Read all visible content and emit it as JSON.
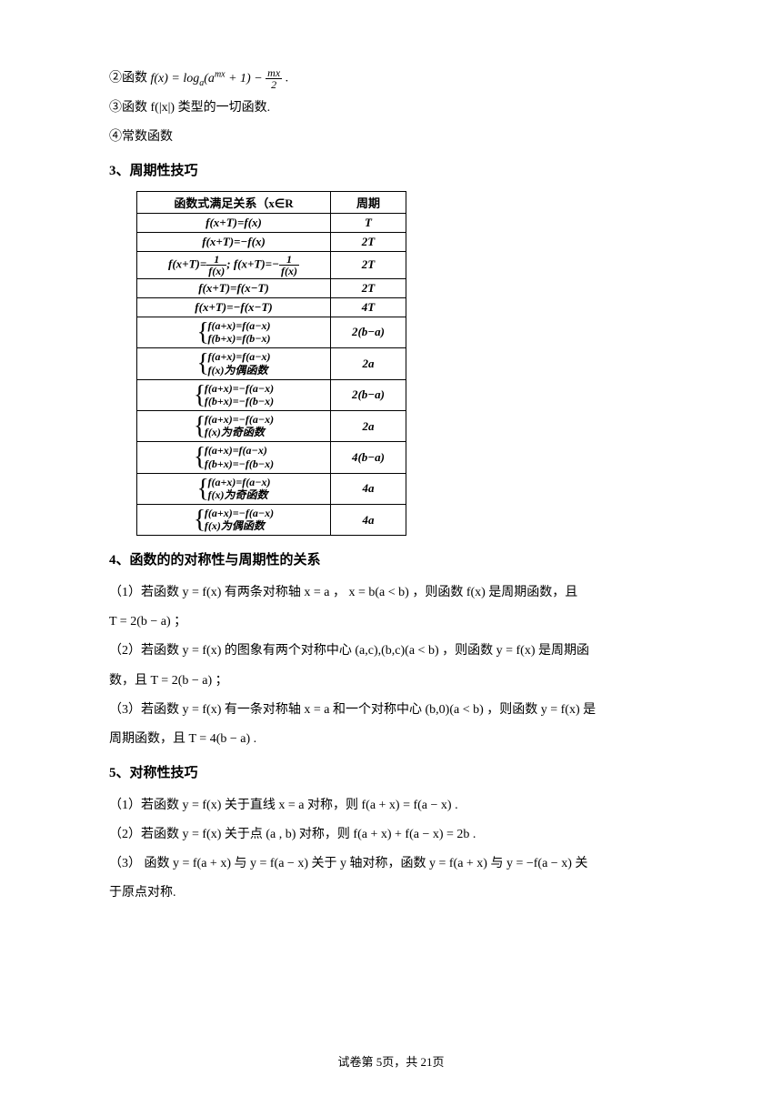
{
  "items": {
    "item2_prefix": "②函数 ",
    "item2_tail": " .",
    "item3": "③函数 f(|x|) 类型的一切函数.",
    "item4": "④常数函数"
  },
  "headings": {
    "h3": "3、周期性技巧",
    "h4": "4、函数的的对称性与周期性的关系",
    "h5": "5、对称性技巧"
  },
  "table": {
    "header_left": "函数式满足关系（x∈R",
    "header_right": "周期",
    "rows": [
      {
        "lhs": "f(x+T)=f(x)",
        "rhs": "T"
      },
      {
        "lhs": "f(x+T)=−f(x)",
        "rhs": "2T"
      },
      {
        "lhs_frac": true,
        "rhs": "2T"
      },
      {
        "lhs": "f(x+T)=f(x−T)",
        "rhs": "2T"
      },
      {
        "lhs": "f(x+T)=−f(x−T)",
        "rhs": "4T"
      },
      {
        "brace": [
          "f(a+x)=f(a−x)",
          "f(b+x)=f(b−x)"
        ],
        "rhs": "2(b−a)"
      },
      {
        "brace": [
          "f(a+x)=f(a−x)",
          "f(x)为偶函数"
        ],
        "rhs": "2a"
      },
      {
        "brace": [
          "f(a+x)=−f(a−x)",
          "f(b+x)=−f(b−x)"
        ],
        "rhs": "2(b−a)"
      },
      {
        "brace": [
          "f(a+x)=−f(a−x)",
          "f(x)为奇函数"
        ],
        "rhs": "2a"
      },
      {
        "brace": [
          "f(a+x)=f(a−x)",
          "f(b+x)=−f(b−x)"
        ],
        "rhs": "4(b−a)"
      },
      {
        "brace": [
          "f(a+x)=f(a−x)",
          "f(x)为奇函数"
        ],
        "rhs": "4a"
      },
      {
        "brace": [
          "f(a+x)=−f(a−x)",
          "f(x)为偶函数"
        ],
        "rhs": "4a"
      }
    ]
  },
  "section4": {
    "p1a": "（1）若函数 y = f(x) 有两条对称轴 x = a ， x = b(a < b) ，则函数 f(x) 是周期函数，且",
    "p1b": "T = 2(b − a) ；",
    "p2a": "（2）若函数 y = f(x) 的图象有两个对称中心 (a,c),(b,c)(a < b) ，则函数 y = f(x) 是周期函",
    "p2b": "数，且 T = 2(b − a) ；",
    "p3a": "（3）若函数 y = f(x) 有一条对称轴 x = a 和一个对称中心 (b,0)(a < b) ，则函数 y = f(x) 是",
    "p3b": "周期函数，且 T = 4(b − a) ."
  },
  "section5": {
    "p1": "（1）若函数 y = f(x) 关于直线 x = a 对称，则 f(a + x) = f(a − x) .",
    "p2": "（2）若函数 y = f(x) 关于点 (a , b) 对称，则 f(a + x) + f(a − x) = 2b .",
    "p3a": "（3） 函数 y = f(a + x) 与 y = f(a − x) 关于 y 轴对称，函数 y = f(a + x) 与 y = −f(a − x) 关",
    "p3b": "于原点对称."
  },
  "footer": "试卷第 5页，共 21页",
  "colors": {
    "text": "#000000",
    "bg": "#ffffff",
    "border": "#000000"
  }
}
